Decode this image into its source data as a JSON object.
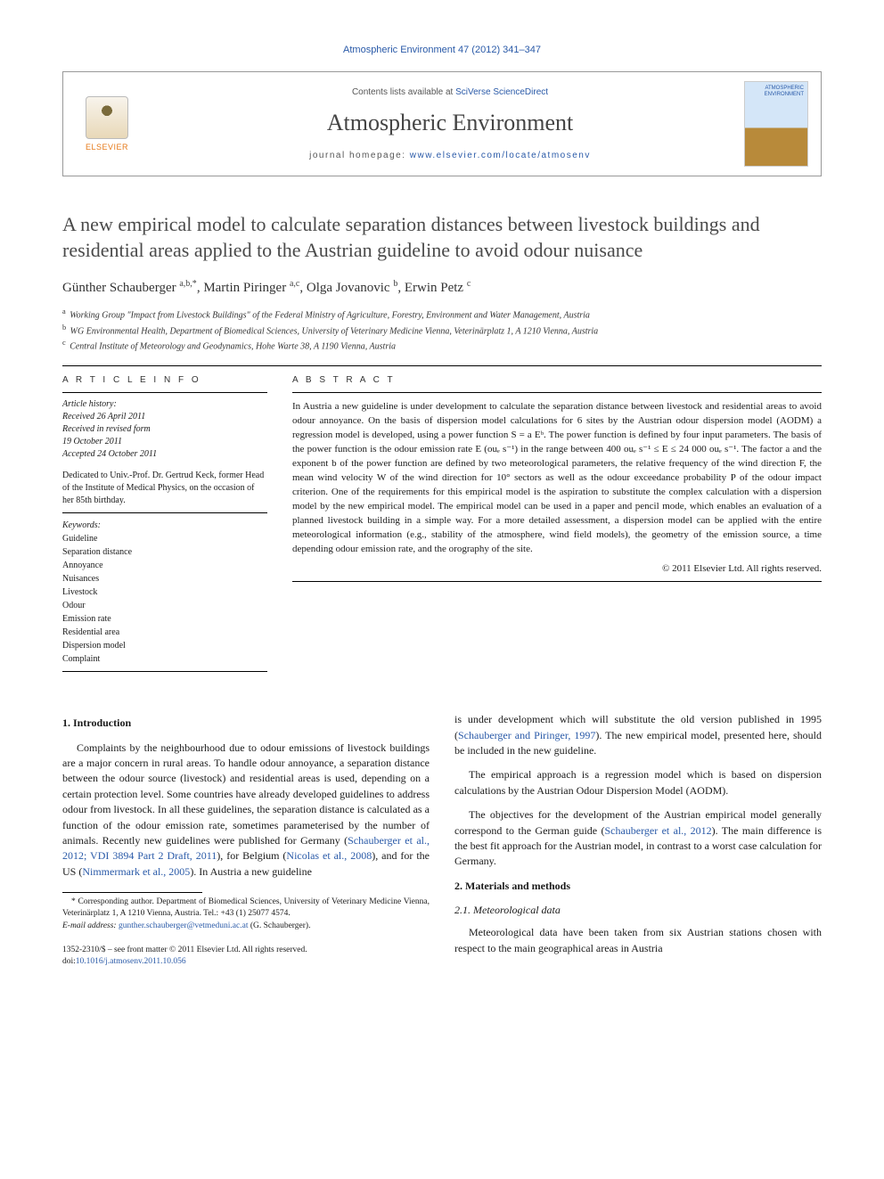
{
  "citation": "Atmospheric Environment 47 (2012) 341–347",
  "header": {
    "contents_prefix": "Contents lists available at ",
    "contents_link": "SciVerse ScienceDirect",
    "journal": "Atmospheric Environment",
    "homepage_prefix": "journal homepage: ",
    "homepage_url": "www.elsevier.com/locate/atmosenv",
    "publisher_label": "ELSEVIER",
    "cover_label_1": "ATMOSPHERIC",
    "cover_label_2": "ENVIRONMENT"
  },
  "title": "A new empirical model to calculate separation distances between livestock buildings and residential areas applied to the Austrian guideline to avoid odour nuisance",
  "authors_html": "Günther Schauberger <sup>a,b,*</sup>, Martin Piringer <sup>a,c</sup>, Olga Jovanovic <sup>b</sup>, Erwin Petz <sup>c</sup>",
  "affiliations": [
    {
      "sup": "a",
      "text": "Working Group \"Impact from Livestock Buildings\" of the Federal Ministry of Agriculture, Forestry, Environment and Water Management, Austria"
    },
    {
      "sup": "b",
      "text": "WG Environmental Health, Department of Biomedical Sciences, University of Veterinary Medicine Vienna, Veterinärplatz 1, A 1210 Vienna, Austria"
    },
    {
      "sup": "c",
      "text": "Central Institute of Meteorology and Geodynamics, Hohe Warte 38, A 1190 Vienna, Austria"
    }
  ],
  "article_info": {
    "heading": "A R T I C L E   I N F O",
    "history_label": "Article history:",
    "received": "Received 26 April 2011",
    "revised": "Received in revised form",
    "revised_date": "19 October 2011",
    "accepted": "Accepted 24 October 2011",
    "dedication": "Dedicated to Univ.-Prof. Dr. Gertrud Keck, former Head of the Institute of Medical Physics, on the occasion of her 85th birthday.",
    "keywords_label": "Keywords:",
    "keywords": [
      "Guideline",
      "Separation distance",
      "Annoyance",
      "Nuisances",
      "Livestock",
      "Odour",
      "Emission rate",
      "Residential area",
      "Dispersion model",
      "Complaint"
    ]
  },
  "abstract": {
    "heading": "A B S T R A C T",
    "text": "In Austria a new guideline is under development to calculate the separation distance between livestock and residential areas to avoid odour annoyance. On the basis of dispersion model calculations for 6 sites by the Austrian odour dispersion model (AODM) a regression model is developed, using a power function S = a Eᵇ. The power function is defined by four input parameters. The basis of the power function is the odour emission rate E (ouₑ s⁻¹) in the range between 400 ouₑ s⁻¹ ≤ E ≤ 24 000 ouₑ s⁻¹. The factor a and the exponent b of the power function are defined by two meteorological parameters, the relative frequency of the wind direction F, the mean wind velocity W of the wind direction for 10° sectors as well as the odour exceedance probability P of the odour impact criterion. One of the requirements for this empirical model is the aspiration to substitute the complex calculation with a dispersion model by the new empirical model. The empirical model can be used in a paper and pencil mode, which enables an evaluation of a planned livestock building in a simple way. For a more detailed assessment, a dispersion model can be applied with the entire meteorological information (e.g., stability of the atmosphere, wind field models), the geometry of the emission source, a time depending odour emission rate, and the orography of the site.",
    "copyright": "© 2011 Elsevier Ltd. All rights reserved."
  },
  "body": {
    "s1_head": "1.  Introduction",
    "s1_p1_a": "Complaints by the neighbourhood due to odour emissions of livestock buildings are a major concern in rural areas. To handle odour annoyance, a separation distance between the odour source (livestock) and residential areas is used, depending on a certain protection level. Some countries have already developed guidelines to address odour from livestock. In all these guidelines, the separation distance is calculated as a function of the odour emission rate, sometimes parameterised by the number of animals. Recently new guidelines were published for Germany (",
    "s1_p1_r1": "Schauberger et al., 2012; VDI 3894 Part 2 Draft, 2011",
    "s1_p1_b": "), for Belgium (",
    "s1_p1_r2": "Nicolas et al., 2008",
    "s1_p1_c": "), and for the US (",
    "s1_p1_r3": "Nimmermark et al., 2005",
    "s1_p1_d": "). In Austria a new guideline",
    "s1_p1_e": "is under development which will substitute the old version published in 1995 (",
    "s1_p1_r4": "Schauberger and Piringer, 1997",
    "s1_p1_f": "). The new empirical model, presented here, should be included in the new guideline.",
    "s1_p2": "The empirical approach is a regression model which is based on dispersion calculations by the Austrian Odour Dispersion Model (AODM).",
    "s1_p3_a": "The objectives for the development of the Austrian empirical model generally correspond to the German guide (",
    "s1_p3_r1": "Schauberger et al., 2012",
    "s1_p3_b": "). The main difference is the best fit approach for the Austrian model, in contrast to a worst case calculation for Germany.",
    "s2_head": "2.  Materials and methods",
    "s21_head": "2.1.  Meteorological data",
    "s21_p1": "Meteorological data have been taken from six Austrian stations chosen with respect to the main geographical areas in Austria"
  },
  "footnote": {
    "corr": "* Corresponding author. Department of Biomedical Sciences, University of Veterinary Medicine Vienna, Veterinärplatz 1, A 1210 Vienna, Austria. Tel.: +43 (1) 25077 4574.",
    "email_label": "E-mail address: ",
    "email": "gunther.schauberger@vetmeduni.ac.at",
    "email_suffix": " (G. Schauberger)."
  },
  "footer": {
    "line1": "1352-2310/$ – see front matter © 2011 Elsevier Ltd. All rights reserved.",
    "doi_label": "doi:",
    "doi": "10.1016/j.atmosenv.2011.10.056"
  }
}
